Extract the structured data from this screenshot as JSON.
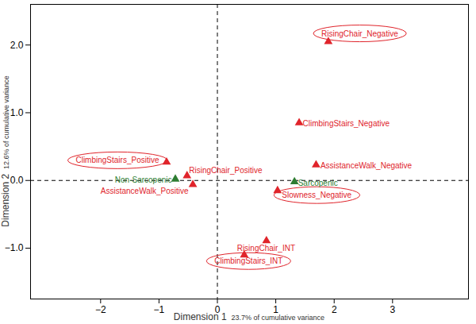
{
  "chart_data": {
    "type": "scatter",
    "x_label": "Dimension 1",
    "x_label_note": "23.7% of cumulative variance",
    "y_label": "Dimension 2",
    "y_label_note": "12.6% of cumulative variance",
    "xlim": [
      -3.2,
      4.3
    ],
    "ylim": [
      -1.75,
      2.6
    ],
    "xticks": [
      -2,
      -1,
      0,
      1,
      2,
      3
    ],
    "yticks": [
      -1,
      0,
      1,
      2
    ],
    "ref_x": 0,
    "ref_y": 0,
    "marker": "triangle",
    "line_style": "dashed",
    "grid": false,
    "points": [
      {
        "label": "RisingChair_Negative",
        "x": 1.9,
        "y": 2.05,
        "color": "#e0242b",
        "circled": true
      },
      {
        "label": "ClimbingStairs_Negative",
        "x": 1.4,
        "y": 0.85,
        "color": "#e0242b",
        "circled": false
      },
      {
        "label": "AssistanceWalk_Negative",
        "x": 1.69,
        "y": 0.23,
        "color": "#e0242b",
        "circled": false
      },
      {
        "label": "Sarcopenic",
        "x": 1.32,
        "y": -0.02,
        "color": "#2e7d32",
        "circled": false
      },
      {
        "label": "Slowness_Negative",
        "x": 1.03,
        "y": -0.15,
        "color": "#e0242b",
        "circled": true
      },
      {
        "label": "RisingChair_INT",
        "x": 0.84,
        "y": -0.89,
        "color": "#e0242b",
        "circled": false
      },
      {
        "label": "ClimbingStairs_INT",
        "x": 0.46,
        "y": -1.1,
        "color": "#e0242b",
        "circled": true
      },
      {
        "label": "ClimbingStairs_Positive",
        "x": -0.87,
        "y": 0.27,
        "color": "#e0242b",
        "circled": true
      },
      {
        "label": "RisingChair_Positive",
        "x": -0.52,
        "y": 0.07,
        "color": "#e0242b",
        "circled": false
      },
      {
        "label": "Non-Sarcopenic",
        "x": -0.72,
        "y": 0.02,
        "color": "#2e7d32",
        "circled": false
      },
      {
        "label": "AssistanceWalk_Positive",
        "x": -0.42,
        "y": -0.06,
        "color": "#e0242b",
        "circled": false
      }
    ]
  }
}
